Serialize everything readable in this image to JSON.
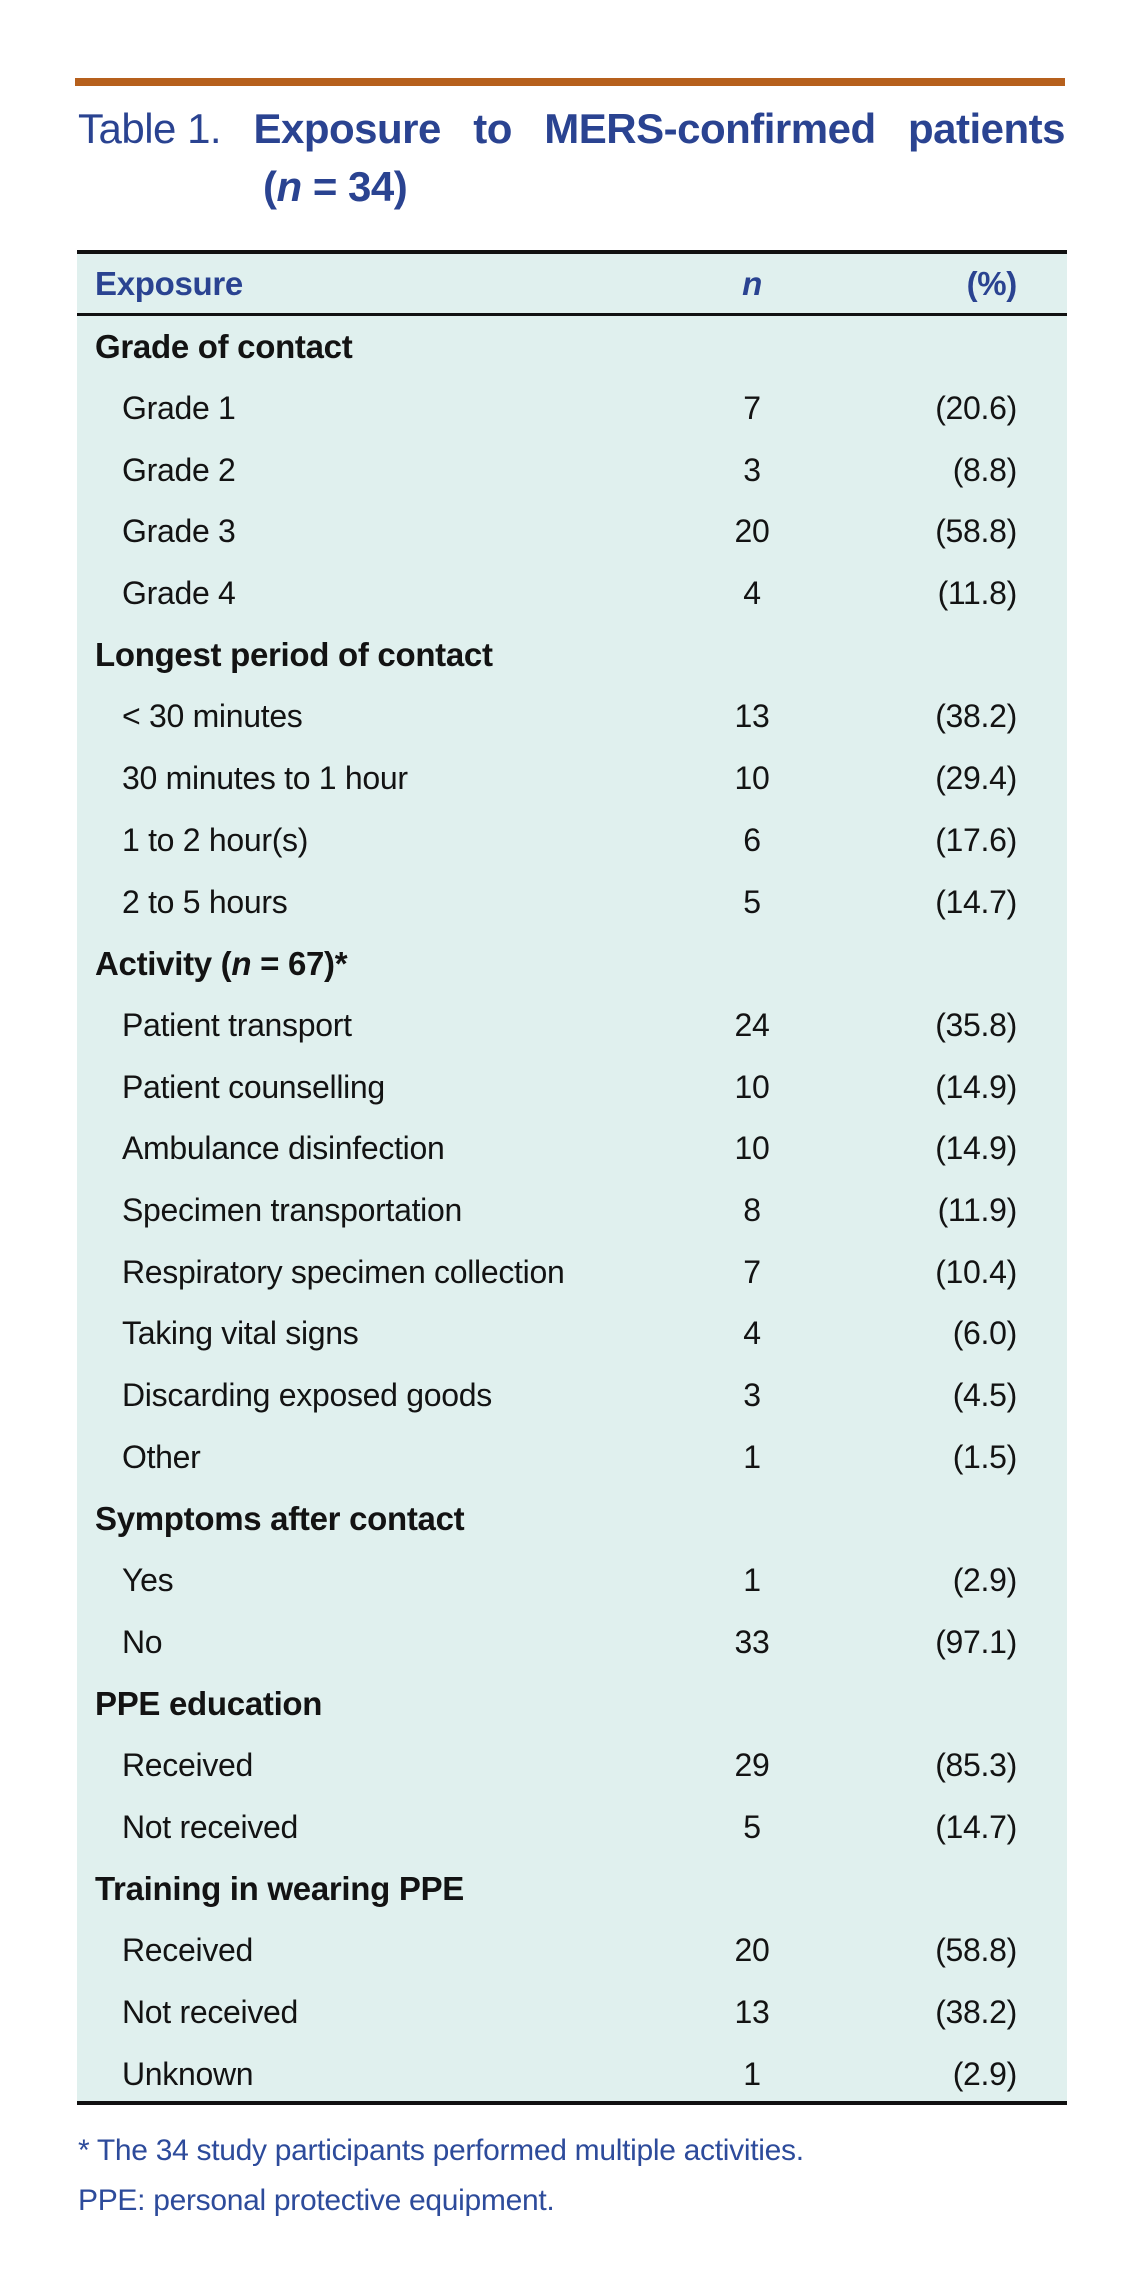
{
  "colors": {
    "accent_blue": "#2a4391",
    "orange_bar": "#b6601d",
    "table_background": "#e0f0ee",
    "body_text": "#131313",
    "footnote_blue": "#2d4b9b"
  },
  "title": {
    "prefix": "Table 1.",
    "line1_words": [
      "Exposure",
      "to",
      "MERS-confirmed",
      "patients"
    ],
    "line2_pre": "(",
    "line2_italic": "n",
    "line2_post": " = 34)"
  },
  "table": {
    "header": {
      "exposure": "Exposure",
      "n": "n",
      "pct": "(%)"
    },
    "rows": [
      {
        "type": "section",
        "label": "Grade of contact"
      },
      {
        "type": "data",
        "label": "Grade 1",
        "n": "7",
        "pct": "(20.6)"
      },
      {
        "type": "data",
        "label": "Grade 2",
        "n": "3",
        "pct": "(8.8)"
      },
      {
        "type": "data",
        "label": "Grade 3",
        "n": "20",
        "pct": "(58.8)"
      },
      {
        "type": "data",
        "label": "Grade 4",
        "n": "4",
        "pct": "(11.8)"
      },
      {
        "type": "section",
        "label": "Longest period of contact"
      },
      {
        "type": "data",
        "label": "< 30 minutes",
        "n": "13",
        "pct": "(38.2)"
      },
      {
        "type": "data",
        "label": "30 minutes to 1 hour",
        "n": "10",
        "pct": "(29.4)"
      },
      {
        "type": "data",
        "label": "1 to 2 hour(s)",
        "n": "6",
        "pct": "(17.6)"
      },
      {
        "type": "data",
        "label": "2 to 5 hours",
        "n": "5",
        "pct": "(14.7)"
      },
      {
        "type": "section",
        "label_pre": "Activity (",
        "label_italic": "n",
        "label_post": " = 67)*"
      },
      {
        "type": "data",
        "label": "Patient transport",
        "n": "24",
        "pct": "(35.8)"
      },
      {
        "type": "data",
        "label": "Patient counselling",
        "n": "10",
        "pct": "(14.9)"
      },
      {
        "type": "data",
        "label": "Ambulance disinfection",
        "n": "10",
        "pct": "(14.9)"
      },
      {
        "type": "data",
        "label": "Specimen transportation",
        "n": "8",
        "pct": "(11.9)"
      },
      {
        "type": "data",
        "label": "Respiratory specimen collection",
        "n": "7",
        "pct": "(10.4)"
      },
      {
        "type": "data",
        "label": "Taking vital signs",
        "n": "4",
        "pct": "(6.0)"
      },
      {
        "type": "data",
        "label": "Discarding exposed goods",
        "n": "3",
        "pct": "(4.5)"
      },
      {
        "type": "data",
        "label": "Other",
        "n": "1",
        "pct": "(1.5)"
      },
      {
        "type": "section",
        "label": "Symptoms after contact"
      },
      {
        "type": "data",
        "label": "Yes",
        "n": "1",
        "pct": "(2.9)"
      },
      {
        "type": "data",
        "label": "No",
        "n": "33",
        "pct": "(97.1)"
      },
      {
        "type": "section",
        "label": "PPE education"
      },
      {
        "type": "data",
        "label": "Received",
        "n": "29",
        "pct": "(85.3)"
      },
      {
        "type": "data",
        "label": "Not received",
        "n": "5",
        "pct": "(14.7)"
      },
      {
        "type": "section",
        "label": "Training in wearing PPE"
      },
      {
        "type": "data",
        "label": "Received",
        "n": "20",
        "pct": "(58.8)"
      },
      {
        "type": "data",
        "label": "Not received",
        "n": "13",
        "pct": "(38.2)"
      },
      {
        "type": "data",
        "label": "Unknown",
        "n": "1",
        "pct": "(2.9)"
      }
    ]
  },
  "footnotes": [
    "* The 34 study participants performed multiple activities.",
    "PPE: personal protective equipment."
  ],
  "chart_data": {
    "type": "table",
    "title": "Table 1. Exposure to MERS-confirmed patients (n = 34)",
    "columns": [
      "Exposure",
      "n",
      "(%)"
    ],
    "sections": [
      {
        "name": "Grade of contact",
        "rows": [
          [
            "Grade 1",
            7,
            20.6
          ],
          [
            "Grade 2",
            3,
            8.8
          ],
          [
            "Grade 3",
            20,
            58.8
          ],
          [
            "Grade 4",
            4,
            11.8
          ]
        ]
      },
      {
        "name": "Longest period of contact",
        "rows": [
          [
            "< 30 minutes",
            13,
            38.2
          ],
          [
            "30 minutes to 1 hour",
            10,
            29.4
          ],
          [
            "1 to 2 hour(s)",
            6,
            17.6
          ],
          [
            "2 to 5 hours",
            5,
            14.7
          ]
        ]
      },
      {
        "name": "Activity (n = 67)*",
        "rows": [
          [
            "Patient transport",
            24,
            35.8
          ],
          [
            "Patient counselling",
            10,
            14.9
          ],
          [
            "Ambulance disinfection",
            10,
            14.9
          ],
          [
            "Specimen transportation",
            8,
            11.9
          ],
          [
            "Respiratory specimen collection",
            7,
            10.4
          ],
          [
            "Taking vital signs",
            4,
            6.0
          ],
          [
            "Discarding exposed goods",
            3,
            4.5
          ],
          [
            "Other",
            1,
            1.5
          ]
        ]
      },
      {
        "name": "Symptoms after contact",
        "rows": [
          [
            "Yes",
            1,
            2.9
          ],
          [
            "No",
            33,
            97.1
          ]
        ]
      },
      {
        "name": "PPE education",
        "rows": [
          [
            "Received",
            29,
            85.3
          ],
          [
            "Not received",
            5,
            14.7
          ]
        ]
      },
      {
        "name": "Training in wearing PPE",
        "rows": [
          [
            "Received",
            20,
            58.8
          ],
          [
            "Not received",
            13,
            38.2
          ],
          [
            "Unknown",
            1,
            2.9
          ]
        ]
      }
    ]
  }
}
